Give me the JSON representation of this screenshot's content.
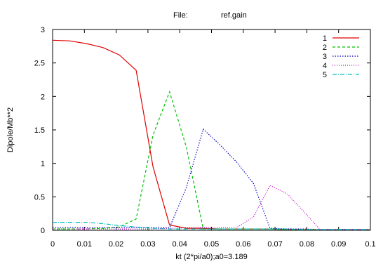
{
  "header": {
    "file_label": "File:",
    "file_name": "ref.gain"
  },
  "chart_data": {
    "type": "line",
    "title": "",
    "xlabel": "kt (2*pi/a0);a0=3.189",
    "ylabel": "Dipole/Mb**2",
    "xlim": [
      0,
      0.1
    ],
    "ylim": [
      0,
      3
    ],
    "x_ticks": [
      0,
      0.01,
      0.02,
      0.03,
      0.04,
      0.05,
      0.06,
      0.07,
      0.08,
      0.09,
      0.1
    ],
    "x_tick_labels": [
      "0",
      "0.01",
      "0.02",
      "0.03",
      "0.04",
      "0.05",
      "0.06",
      "0.07",
      "0.08",
      "0.09",
      "0.1"
    ],
    "y_ticks": [
      0,
      0.5,
      1,
      1.5,
      2,
      2.5,
      3
    ],
    "y_tick_labels": [
      "0",
      "0.5",
      "1",
      "1.5",
      "2",
      "2.5",
      "3"
    ],
    "grid": false,
    "legend_position": "top-right",
    "series": [
      {
        "name": "1",
        "color": "#e00000",
        "dash": "",
        "x": [
          0,
          0.0053,
          0.0105,
          0.0158,
          0.021,
          0.0263,
          0.0316,
          0.0368,
          0.0421,
          0.0474,
          0.0526,
          0.0579,
          0.0632,
          0.0684,
          0.0737,
          0.079,
          0.0842,
          0.0895,
          0.0947,
          0.1
        ],
        "y": [
          2.84,
          2.83,
          2.79,
          2.73,
          2.62,
          2.39,
          0.95,
          0.08,
          0.03,
          0.03,
          0.02,
          0.02,
          0.02,
          0.02,
          0.01,
          0.01,
          0.01,
          0.01,
          0.01,
          0.01
        ]
      },
      {
        "name": "2",
        "color": "#00c000",
        "dash": "4,3",
        "x": [
          0,
          0.0053,
          0.0105,
          0.0158,
          0.021,
          0.0263,
          0.0316,
          0.0368,
          0.0421,
          0.0474,
          0.0526,
          0.0579,
          0.0632,
          0.0684,
          0.0737,
          0.079,
          0.0842,
          0.0895,
          0.0947,
          0.1
        ],
        "y": [
          0.02,
          0.02,
          0.02,
          0.03,
          0.05,
          0.17,
          1.42,
          2.07,
          1.24,
          0.02,
          0.02,
          0.02,
          0.02,
          0.02,
          0.01,
          0.01,
          0.01,
          0.01,
          0.01,
          0.01
        ]
      },
      {
        "name": "3",
        "color": "#0000c0",
        "dash": "1.5,2",
        "x": [
          0,
          0.0053,
          0.0105,
          0.0158,
          0.021,
          0.0263,
          0.0316,
          0.0368,
          0.0421,
          0.0474,
          0.0526,
          0.0579,
          0.0632,
          0.0684,
          0.0737,
          0.079,
          0.0842,
          0.0895,
          0.0947,
          0.1
        ],
        "y": [
          0.04,
          0.04,
          0.04,
          0.04,
          0.04,
          0.04,
          0.04,
          0.04,
          0.64,
          1.51,
          1.28,
          1.02,
          0.7,
          0.03,
          0.02,
          0.02,
          0.01,
          0.01,
          0.01,
          0.01
        ]
      },
      {
        "name": "4",
        "color": "#c000c0",
        "dash": "1,2",
        "x": [
          0,
          0.0053,
          0.0105,
          0.0158,
          0.021,
          0.0263,
          0.0316,
          0.0368,
          0.0421,
          0.0474,
          0.0526,
          0.0579,
          0.0632,
          0.0684,
          0.0737,
          0.079,
          0.0842,
          0.0895,
          0.0947,
          0.1
        ],
        "y": [
          0.02,
          0.02,
          0.02,
          0.02,
          0.02,
          0.02,
          0.02,
          0.03,
          0.04,
          0.04,
          0.04,
          0.04,
          0.2,
          0.67,
          0.55,
          0.28,
          0.01,
          0.01,
          0.01,
          0.01
        ]
      },
      {
        "name": "5",
        "color": "#00c0c0",
        "dash": "6,2,1,2",
        "x": [
          0,
          0.0053,
          0.0105,
          0.0158,
          0.021,
          0.0263,
          0.0316,
          0.0368,
          0.0421,
          0.0474,
          0.0526,
          0.0579,
          0.0632,
          0.0684,
          0.0737,
          0.079,
          0.0842,
          0.0895,
          0.0947,
          0.1
        ],
        "y": [
          0.12,
          0.12,
          0.12,
          0.1,
          0.07,
          0.05,
          0.03,
          0.02,
          0.02,
          0.02,
          0.02,
          0.02,
          0.02,
          0.02,
          0.02,
          0.01,
          0.01,
          0.01,
          0.01,
          0.01
        ]
      }
    ]
  }
}
